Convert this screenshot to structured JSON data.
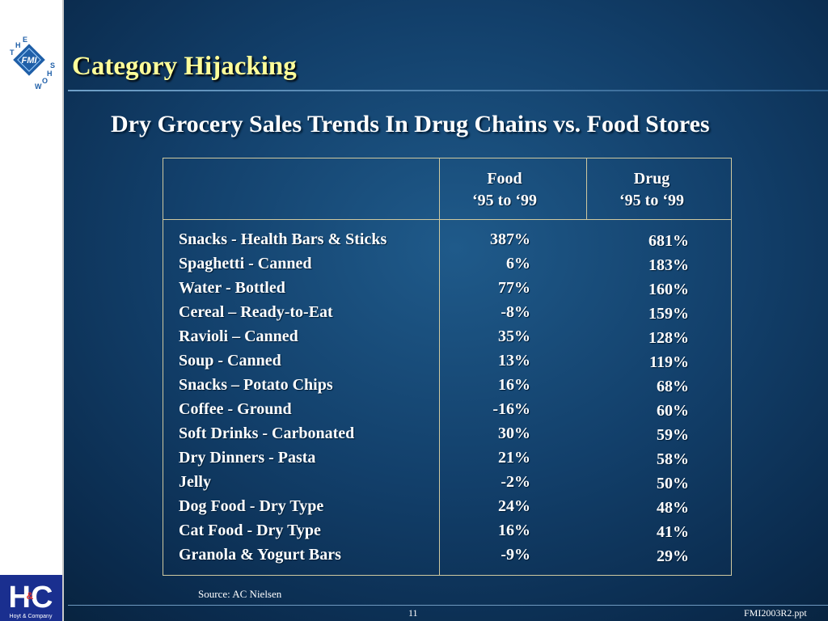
{
  "slide": {
    "title": "Category Hijacking",
    "subtitle": "Dry Grocery Sales Trends In Drug Chains vs. Food Stores",
    "source": "Source:  AC Nielsen",
    "page_number": "11",
    "file_name": "FMI2003R2.ppt"
  },
  "logos": {
    "fmi": {
      "letters_top": [
        "T",
        "H",
        "E"
      ],
      "letters_bottom": [
        "S",
        "H",
        "O",
        "W"
      ],
      "mark": "FMI"
    },
    "hoyt": {
      "initials": "HC",
      "ampersand": "&",
      "company": "Hoyt & Company"
    }
  },
  "table": {
    "columns": [
      {
        "line1": "Food",
        "line2": "‘95 to ‘99"
      },
      {
        "line1": "Drug",
        "line2": "‘95 to ‘99"
      }
    ],
    "rows": [
      {
        "category": "Snacks - Health Bars & Sticks",
        "food": "387%",
        "drug": "681%"
      },
      {
        "category": "Spaghetti - Canned",
        "food": "6%",
        "drug": "183%"
      },
      {
        "category": "Water - Bottled",
        "food": "77%",
        "drug": "160%"
      },
      {
        "category": "Cereal – Ready-to-Eat",
        "food": "-8%",
        "drug": "159%"
      },
      {
        "category": "Ravioli – Canned",
        "food": "35%",
        "drug": "128%"
      },
      {
        "category": "Soup - Canned",
        "food": "13%",
        "drug": "119%"
      },
      {
        "category": "Snacks – Potato Chips",
        "food": "16%",
        "drug": "68%"
      },
      {
        "category": "Coffee - Ground",
        "food": "-16%",
        "drug": "60%"
      },
      {
        "category": "Soft Drinks - Carbonated",
        "food": "30%",
        "drug": "59%"
      },
      {
        "category": "Dry Dinners - Pasta",
        "food": "21%",
        "drug": "58%"
      },
      {
        "category": "Jelly",
        "food": "-2%",
        "drug": "50%"
      },
      {
        "category": "Dog Food - Dry Type",
        "food": "24%",
        "drug": "48%"
      },
      {
        "category": "Cat Food - Dry Type",
        "food": "16%",
        "drug": "41%"
      },
      {
        "category": "Granola & Yogurt Bars",
        "food": "-9%",
        "drug": "29%"
      }
    ]
  },
  "colors": {
    "title": "#ffff9a",
    "text": "#ffffff",
    "background": "#123f6a",
    "table_border": "#cfc9a0",
    "logo_blue": "#1f5fa8"
  }
}
